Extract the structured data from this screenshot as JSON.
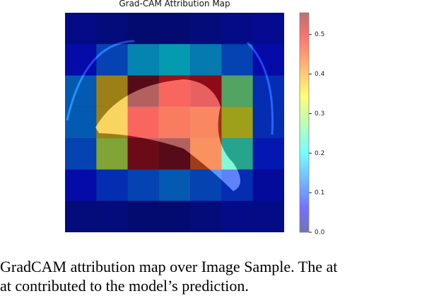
{
  "chart_data": {
    "type": "heatmap",
    "title": "Grad-CAM Attribution Map",
    "values": [
      [
        0.03,
        0.02,
        0.01,
        0.01,
        0.02,
        0.03,
        0.04
      ],
      [
        0.06,
        0.12,
        0.18,
        0.2,
        0.17,
        0.12,
        0.06
      ],
      [
        0.14,
        0.38,
        0.55,
        0.48,
        0.5,
        0.28,
        0.1
      ],
      [
        0.14,
        0.38,
        0.48,
        0.46,
        0.45,
        0.35,
        0.1
      ],
      [
        0.12,
        0.32,
        0.53,
        0.55,
        0.44,
        0.24,
        0.08
      ],
      [
        0.06,
        0.1,
        0.12,
        0.14,
        0.12,
        0.1,
        0.05
      ],
      [
        0.02,
        0.02,
        0.01,
        0.01,
        0.02,
        0.03,
        0.03
      ]
    ],
    "zlim": [
      0,
      0.555
    ],
    "zticks": [
      {
        "value": 0,
        "label": "0.0"
      },
      0.1,
      0.2,
      0.3,
      0.4,
      0.5
    ]
  },
  "caption": [
    "GradCAM attribution map over Image Sample. The at",
    "at contributed to the model’s prediction."
  ]
}
